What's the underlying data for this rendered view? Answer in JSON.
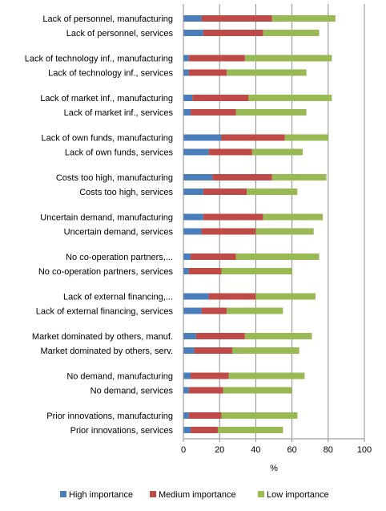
{
  "chart_data": {
    "type": "bar",
    "orientation": "horizontal",
    "stacked": true,
    "title": "",
    "xlabel": "%",
    "ylabel": "",
    "xlim": [
      0,
      100
    ],
    "xticks": [
      0,
      20,
      40,
      60,
      80,
      100
    ],
    "grid": "vertical",
    "legend_position": "bottom",
    "categories": [
      "Lack of personnel, manufacturing",
      "Lack of personnel, services",
      "Lack of technology inf., manufacturing",
      "Lack of technology inf., services",
      "Lack of market inf., manufacturing",
      "Lack of market inf., services",
      "Lack of own funds, manufacturing",
      "Lack of own funds, services",
      "Costs too high, manufacturing",
      "Costs too high, services",
      "Uncertain demand, manufacturing",
      "Uncertain demand, services",
      "No co-operation partners,...",
      "No co-operation partners, services",
      "Lack of external financing,...",
      "Lack of external financing, services",
      "Market dominated by others, manuf.",
      "Market dominated by others, serv.",
      "No demand, manufacturing",
      "No demand, services",
      "Prior innovations, manufacturing",
      "Prior innovations, services"
    ],
    "series": [
      {
        "name": "High importance",
        "color": "#4a7ebb",
        "values": [
          10,
          11,
          3,
          3,
          5,
          4,
          21,
          14,
          16,
          11,
          11,
          10,
          4,
          3,
          14,
          10,
          7,
          6,
          4,
          3,
          3,
          4
        ]
      },
      {
        "name": "Medium importance",
        "color": "#be4b48",
        "values": [
          39,
          33,
          31,
          21,
          31,
          25,
          35,
          24,
          33,
          24,
          33,
          30,
          25,
          18,
          26,
          14,
          27,
          21,
          21,
          19,
          18,
          15
        ]
      },
      {
        "name": "Low importance",
        "color": "#98b954",
        "values": [
          35,
          31,
          48,
          44,
          46,
          39,
          24,
          28,
          30,
          28,
          33,
          32,
          46,
          39,
          33,
          31,
          37,
          37,
          42,
          38,
          42,
          36
        ]
      }
    ]
  }
}
